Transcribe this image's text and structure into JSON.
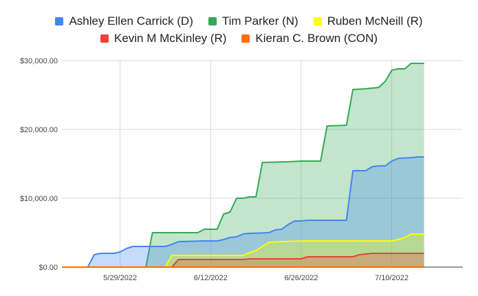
{
  "chart_data": {
    "type": "area",
    "title": "",
    "xlabel": "",
    "ylabel": "",
    "x_start": "2022-05-20",
    "x_end": "2022-07-21",
    "x_tick_labels": [
      {
        "date": "2022-05-29",
        "label": "5/29/2022"
      },
      {
        "date": "2022-06-12",
        "label": "6/12/2022"
      },
      {
        "date": "2022-06-26",
        "label": "6/26/2022"
      },
      {
        "date": "2022-07-10",
        "label": "7/10/2022"
      }
    ],
    "ylim": [
      0,
      30000
    ],
    "y_ticks": [
      0,
      10000,
      20000,
      30000
    ],
    "y_tick_labels": [
      "$0.00",
      "$10,000.00",
      "$20,000.00",
      "$30,000.00"
    ],
    "grid": true,
    "legend_position": "top",
    "series": [
      {
        "name": "Tim Parker (N)",
        "color": "#34a853",
        "points": [
          [
            "2022-05-20",
            0
          ],
          [
            "2022-06-02",
            0
          ],
          [
            "2022-06-03",
            5000
          ],
          [
            "2022-06-10",
            5000
          ],
          [
            "2022-06-11",
            5500
          ],
          [
            "2022-06-13",
            5500
          ],
          [
            "2022-06-14",
            7700
          ],
          [
            "2022-06-15",
            8000
          ],
          [
            "2022-06-16",
            10000
          ],
          [
            "2022-06-17",
            10000
          ],
          [
            "2022-06-18",
            10200
          ],
          [
            "2022-06-19",
            10200
          ],
          [
            "2022-06-20",
            15200
          ],
          [
            "2022-06-24",
            15300
          ],
          [
            "2022-06-26",
            15400
          ],
          [
            "2022-06-29",
            15400
          ],
          [
            "2022-06-30",
            20500
          ],
          [
            "2022-07-03",
            20600
          ],
          [
            "2022-07-04",
            25800
          ],
          [
            "2022-07-06",
            25900
          ],
          [
            "2022-07-08",
            26100
          ],
          [
            "2022-07-09",
            27000
          ],
          [
            "2022-07-10",
            28600
          ],
          [
            "2022-07-11",
            28800
          ],
          [
            "2022-07-12",
            28800
          ],
          [
            "2022-07-13",
            29600
          ],
          [
            "2022-07-15",
            29600
          ]
        ]
      },
      {
        "name": "Ashley Ellen Carrick (D)",
        "color": "#4285f4",
        "points": [
          [
            "2022-05-20",
            0
          ],
          [
            "2022-05-24",
            0
          ],
          [
            "2022-05-25",
            1800
          ],
          [
            "2022-05-26",
            2000
          ],
          [
            "2022-05-28",
            2000
          ],
          [
            "2022-05-29",
            2200
          ],
          [
            "2022-05-30",
            2700
          ],
          [
            "2022-05-31",
            3000
          ],
          [
            "2022-06-05",
            3000
          ],
          [
            "2022-06-06",
            3300
          ],
          [
            "2022-06-07",
            3700
          ],
          [
            "2022-06-11",
            3800
          ],
          [
            "2022-06-13",
            3800
          ],
          [
            "2022-06-14",
            4000
          ],
          [
            "2022-06-15",
            4300
          ],
          [
            "2022-06-16",
            4400
          ],
          [
            "2022-06-17",
            4800
          ],
          [
            "2022-06-18",
            4900
          ],
          [
            "2022-06-21",
            5000
          ],
          [
            "2022-06-22",
            5400
          ],
          [
            "2022-06-23",
            5500
          ],
          [
            "2022-06-24",
            6200
          ],
          [
            "2022-06-25",
            6700
          ],
          [
            "2022-06-26",
            6700
          ],
          [
            "2022-06-27",
            6800
          ],
          [
            "2022-07-03",
            6800
          ],
          [
            "2022-07-04",
            14000
          ],
          [
            "2022-07-06",
            14000
          ],
          [
            "2022-07-07",
            14600
          ],
          [
            "2022-07-08",
            14700
          ],
          [
            "2022-07-09",
            14700
          ],
          [
            "2022-07-10",
            15400
          ],
          [
            "2022-07-11",
            15800
          ],
          [
            "2022-07-13",
            15900
          ],
          [
            "2022-07-14",
            16000
          ],
          [
            "2022-07-15",
            16000
          ]
        ]
      },
      {
        "name": "Ruben McNeill (R)",
        "color": "#fbff00",
        "points": [
          [
            "2022-05-20",
            0
          ],
          [
            "2022-06-05",
            0
          ],
          [
            "2022-06-06",
            1700
          ],
          [
            "2022-06-17",
            1700
          ],
          [
            "2022-06-18",
            2100
          ],
          [
            "2022-06-19",
            2400
          ],
          [
            "2022-06-20",
            3000
          ],
          [
            "2022-06-21",
            3600
          ],
          [
            "2022-06-23",
            3700
          ],
          [
            "2022-06-26",
            3800
          ],
          [
            "2022-07-10",
            3800
          ],
          [
            "2022-07-11",
            4000
          ],
          [
            "2022-07-12",
            4300
          ],
          [
            "2022-07-13",
            4800
          ],
          [
            "2022-07-15",
            4800
          ]
        ]
      },
      {
        "name": "Kevin M McKinley (R)",
        "color": "#ea4335",
        "points": [
          [
            "2022-05-20",
            0
          ],
          [
            "2022-06-06",
            0
          ],
          [
            "2022-06-07",
            1100
          ],
          [
            "2022-06-17",
            1100
          ],
          [
            "2022-06-18",
            1200
          ],
          [
            "2022-06-26",
            1200
          ],
          [
            "2022-06-27",
            1500
          ],
          [
            "2022-07-04",
            1500
          ],
          [
            "2022-07-05",
            1800
          ],
          [
            "2022-07-06",
            1900
          ],
          [
            "2022-07-07",
            2000
          ],
          [
            "2022-07-15",
            2000
          ]
        ]
      },
      {
        "name": "Kieran C. Brown (CON)",
        "color": "#ff6d01",
        "points": [
          [
            "2022-05-20",
            0
          ],
          [
            "2022-07-15",
            0
          ]
        ]
      }
    ],
    "legend_rows": [
      [
        "Ashley Ellen Carrick (D)",
        "Tim Parker (N)",
        "Ruben McNeill (R)"
      ],
      [
        "Kevin M McKinley (R)",
        "Kieran C. Brown (CON)"
      ]
    ]
  }
}
